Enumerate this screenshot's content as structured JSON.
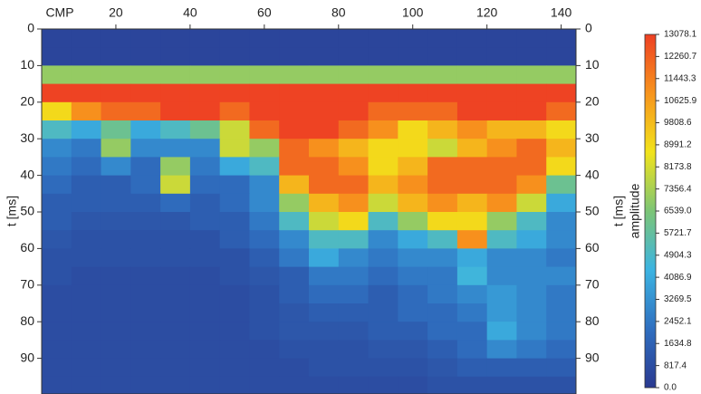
{
  "chart_data": {
    "type": "heatmap",
    "x_label": "CMP",
    "y_label": "t [ms]",
    "colorbar_label": "amplitude",
    "xlim": [
      0,
      144
    ],
    "xticks": [
      20,
      40,
      60,
      80,
      100,
      120,
      140
    ],
    "ylim": [
      0,
      100
    ],
    "yticks": [
      0,
      10,
      20,
      30,
      40,
      50,
      60,
      70,
      80,
      90
    ],
    "zlim": [
      0,
      13078.1
    ],
    "zticks": [
      {
        "value": 0,
        "label": "0.0"
      },
      817.4,
      1634.8,
      2452.1,
      3269.5,
      4086.9,
      4904.3,
      5721.7,
      {
        "value": 6539,
        "label": "6539.0"
      },
      7356.4,
      8173.8,
      8991.2,
      9808.6,
      10625.9,
      11443.3,
      12260.7,
      13078.1
    ],
    "colorscale": [
      "#2a3990",
      "#2f6fc0",
      "#3cb4e2",
      "#7cc576",
      "#f2e31b",
      "#f7941d",
      "#ee4023"
    ],
    "xbins": [
      0,
      8,
      16,
      24,
      32,
      40,
      48,
      56,
      64,
      72,
      80,
      88,
      96,
      104,
      112,
      120,
      128,
      136,
      144
    ],
    "ybins": [
      0,
      5,
      10,
      15,
      20,
      25,
      30,
      35,
      40,
      45,
      50,
      55,
      60,
      65,
      70,
      75,
      80,
      85,
      90,
      95,
      100
    ],
    "values": [
      [
        500,
        500,
        500,
        500,
        500,
        500,
        500,
        500,
        500,
        500,
        500,
        500,
        500,
        500,
        500,
        500,
        500,
        500
      ],
      [
        500,
        500,
        500,
        500,
        500,
        500,
        500,
        500,
        500,
        500,
        500,
        500,
        500,
        500,
        500,
        500,
        500,
        500
      ],
      [
        7000,
        7000,
        7000,
        7000,
        7000,
        7000,
        7000,
        7000,
        7000,
        7000,
        7000,
        7000,
        7000,
        7000,
        7000,
        7000,
        7000,
        7000
      ],
      [
        13000,
        13000,
        13000,
        13000,
        13000,
        13000,
        13000,
        13000,
        13000,
        13000,
        13000,
        13000,
        13000,
        13000,
        13000,
        13000,
        13000,
        13000
      ],
      [
        9000,
        11000,
        12000,
        12000,
        13000,
        13000,
        12000,
        13000,
        13000,
        13000,
        13000,
        12000,
        12000,
        12000,
        13000,
        13000,
        13000,
        12000
      ],
      [
        5000,
        4000,
        6000,
        4000,
        5000,
        6000,
        8000,
        12000,
        13000,
        13000,
        12000,
        11000,
        9000,
        10000,
        11000,
        10000,
        10000,
        9000
      ],
      [
        3000,
        2500,
        7000,
        3000,
        3000,
        3000,
        8000,
        7000,
        12000,
        11000,
        10000,
        9000,
        9000,
        8000,
        10000,
        11000,
        12000,
        10000
      ],
      [
        2500,
        2000,
        3000,
        2000,
        7000,
        2500,
        4000,
        5000,
        12000,
        12000,
        11000,
        9000,
        10000,
        12000,
        12000,
        12000,
        12000,
        9000
      ],
      [
        2000,
        1500,
        1500,
        2000,
        8000,
        2000,
        2000,
        3000,
        10000,
        12000,
        12000,
        10000,
        11000,
        12000,
        12000,
        12000,
        11000,
        6000
      ],
      [
        1500,
        1500,
        1500,
        1500,
        2000,
        1500,
        2000,
        3000,
        7000,
        10000,
        11000,
        8000,
        10000,
        11000,
        10000,
        11000,
        8000,
        4000
      ],
      [
        1500,
        1200,
        1200,
        1200,
        1200,
        1500,
        1500,
        2500,
        5000,
        8000,
        9000,
        5000,
        7000,
        9000,
        9000,
        7000,
        5000,
        3000
      ],
      [
        1200,
        1000,
        1000,
        1000,
        1000,
        1000,
        1500,
        2000,
        3000,
        5000,
        5000,
        3000,
        4000,
        5000,
        11000,
        5000,
        4000,
        3000
      ],
      [
        1000,
        1000,
        1000,
        1000,
        1000,
        1000,
        1000,
        1500,
        2500,
        4000,
        3000,
        2500,
        3000,
        3000,
        4000,
        3000,
        3000,
        2500
      ],
      [
        1000,
        800,
        800,
        800,
        800,
        800,
        1000,
        1200,
        1500,
        2500,
        2500,
        2000,
        2500,
        2500,
        4500,
        3000,
        3000,
        3000
      ],
      [
        800,
        800,
        800,
        800,
        800,
        800,
        800,
        1000,
        1500,
        2000,
        2000,
        1500,
        2000,
        2500,
        3000,
        3500,
        3000,
        2500
      ],
      [
        800,
        800,
        800,
        800,
        800,
        800,
        800,
        1000,
        1200,
        1500,
        1500,
        1500,
        2000,
        2000,
        2500,
        3500,
        3000,
        2500
      ],
      [
        800,
        800,
        800,
        800,
        800,
        800,
        800,
        1000,
        1200,
        1200,
        1200,
        1500,
        1500,
        2000,
        2000,
        4000,
        3000,
        2500
      ],
      [
        800,
        800,
        800,
        800,
        800,
        800,
        800,
        800,
        1000,
        1000,
        1000,
        1200,
        1200,
        1500,
        2000,
        3000,
        2500,
        2000
      ],
      [
        800,
        800,
        800,
        800,
        800,
        800,
        800,
        800,
        800,
        1000,
        1000,
        1000,
        1000,
        1200,
        1500,
        1500,
        1500,
        1500
      ],
      [
        800,
        800,
        800,
        800,
        800,
        800,
        800,
        800,
        800,
        800,
        800,
        800,
        800,
        1000,
        1000,
        1000,
        1000,
        1000
      ]
    ]
  }
}
